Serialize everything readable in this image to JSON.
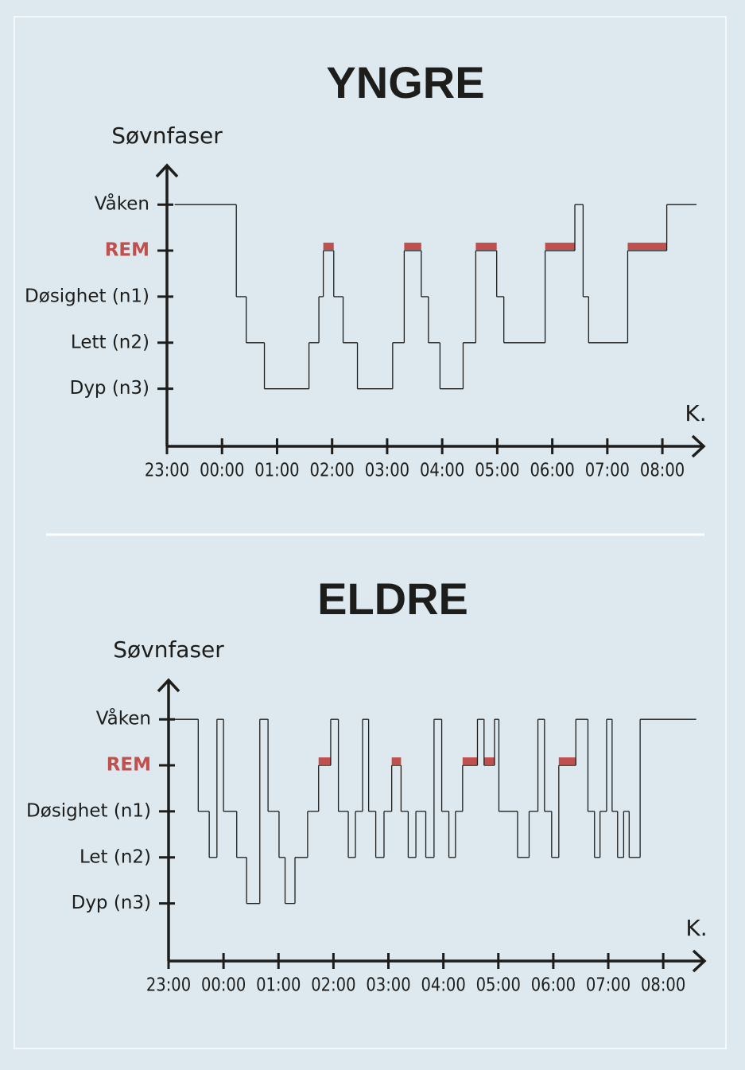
{
  "chart_data": [
    {
      "type": "step",
      "title": "YNGRE",
      "y_label": "Søvnfaser",
      "x_label": "K.",
      "color": "#1d1d1b",
      "xlim": [
        23,
        32.75
      ],
      "ylim": [
        -1.25,
        4.85
      ],
      "xticks": [
        {
          "value": 23,
          "label": "23:00"
        },
        {
          "value": 24,
          "label": "00:00"
        },
        {
          "value": 25,
          "label": "01:00"
        },
        {
          "value": 26,
          "label": "02:00"
        },
        {
          "value": 27,
          "label": "03:00"
        },
        {
          "value": 28,
          "label": "04:00"
        },
        {
          "value": 29,
          "label": "05:00"
        },
        {
          "value": 30,
          "label": "06:00"
        },
        {
          "value": 31,
          "label": "07:00"
        },
        {
          "value": 32,
          "label": "08:00"
        }
      ],
      "yticks": [
        {
          "value": 4,
          "label": "Våken"
        },
        {
          "value": 3,
          "label": "REM",
          "color": "#c0504d"
        },
        {
          "value": 2,
          "label": "Døsighet (n1)"
        },
        {
          "value": 1,
          "label": "Lett (n2)"
        },
        {
          "value": 0,
          "label": "Dyp (n3)"
        }
      ],
      "x": [
        23.14,
        24.26,
        24.44,
        24.77,
        25.58,
        25.76,
        25.84,
        26.03,
        26.2,
        26.46,
        27.1,
        27.31,
        27.62,
        27.75,
        27.96,
        28.38,
        28.61,
        28.99,
        29.12,
        29.87,
        30.41,
        30.56,
        30.66,
        31.37,
        32.08,
        32.62
      ],
      "values": [
        4,
        2,
        1,
        0,
        1,
        2,
        3,
        2,
        1,
        0,
        1,
        3,
        2,
        1,
        0,
        1,
        3,
        2,
        1,
        3,
        4,
        2,
        1,
        3,
        4,
        4
      ]
    },
    {
      "type": "step",
      "title": "ELDRE",
      "y_label": "Søvnfaser",
      "x_label": "K.",
      "color": "#1d1d1b",
      "xlim": [
        23,
        32.75
      ],
      "ylim": [
        -1.25,
        4.85
      ],
      "xticks": [
        {
          "value": 23,
          "label": "23:00"
        },
        {
          "value": 24,
          "label": "00:00"
        },
        {
          "value": 25,
          "label": "01:00"
        },
        {
          "value": 26,
          "label": "02:00"
        },
        {
          "value": 27,
          "label": "03:00"
        },
        {
          "value": 28,
          "label": "04:00"
        },
        {
          "value": 29,
          "label": "05:00"
        },
        {
          "value": 30,
          "label": "06:00"
        },
        {
          "value": 31,
          "label": "07:00"
        },
        {
          "value": 32,
          "label": "08:00"
        }
      ],
      "yticks": [
        {
          "value": 4,
          "label": "Våken"
        },
        {
          "value": 3,
          "label": "REM",
          "color": "#c0504d"
        },
        {
          "value": 2,
          "label": "Døsighet (n1)"
        },
        {
          "value": 1,
          "label": "Let (n2)"
        },
        {
          "value": 0,
          "label": "Dyp (n3)"
        }
      ],
      "x": [
        23.09,
        23.54,
        23.74,
        23.88,
        24.0,
        24.24,
        24.42,
        24.66,
        24.81,
        25.01,
        25.12,
        25.3,
        25.53,
        25.73,
        25.95,
        26.09,
        26.27,
        26.4,
        26.53,
        26.64,
        26.77,
        26.92,
        27.06,
        27.23,
        27.36,
        27.5,
        27.68,
        27.83,
        27.97,
        28.1,
        28.22,
        28.35,
        28.62,
        28.74,
        28.93,
        29.01,
        29.35,
        29.56,
        29.72,
        29.84,
        29.97,
        30.1,
        30.41,
        30.63,
        30.75,
        30.85,
        30.97,
        31.07,
        31.17,
        31.28,
        31.38,
        31.58,
        32.6
      ],
      "values": [
        4,
        2,
        1,
        4,
        2,
        1,
        0,
        4,
        2,
        1,
        0,
        1,
        2,
        3,
        4,
        2,
        1,
        2,
        4,
        2,
        1,
        2,
        3,
        2,
        1,
        2,
        1,
        4,
        2,
        1,
        2,
        3,
        4,
        3,
        4,
        2,
        1,
        2,
        4,
        2,
        1,
        3,
        4,
        2,
        1,
        2,
        4,
        2,
        1,
        2,
        1,
        4,
        4
      ]
    }
  ]
}
